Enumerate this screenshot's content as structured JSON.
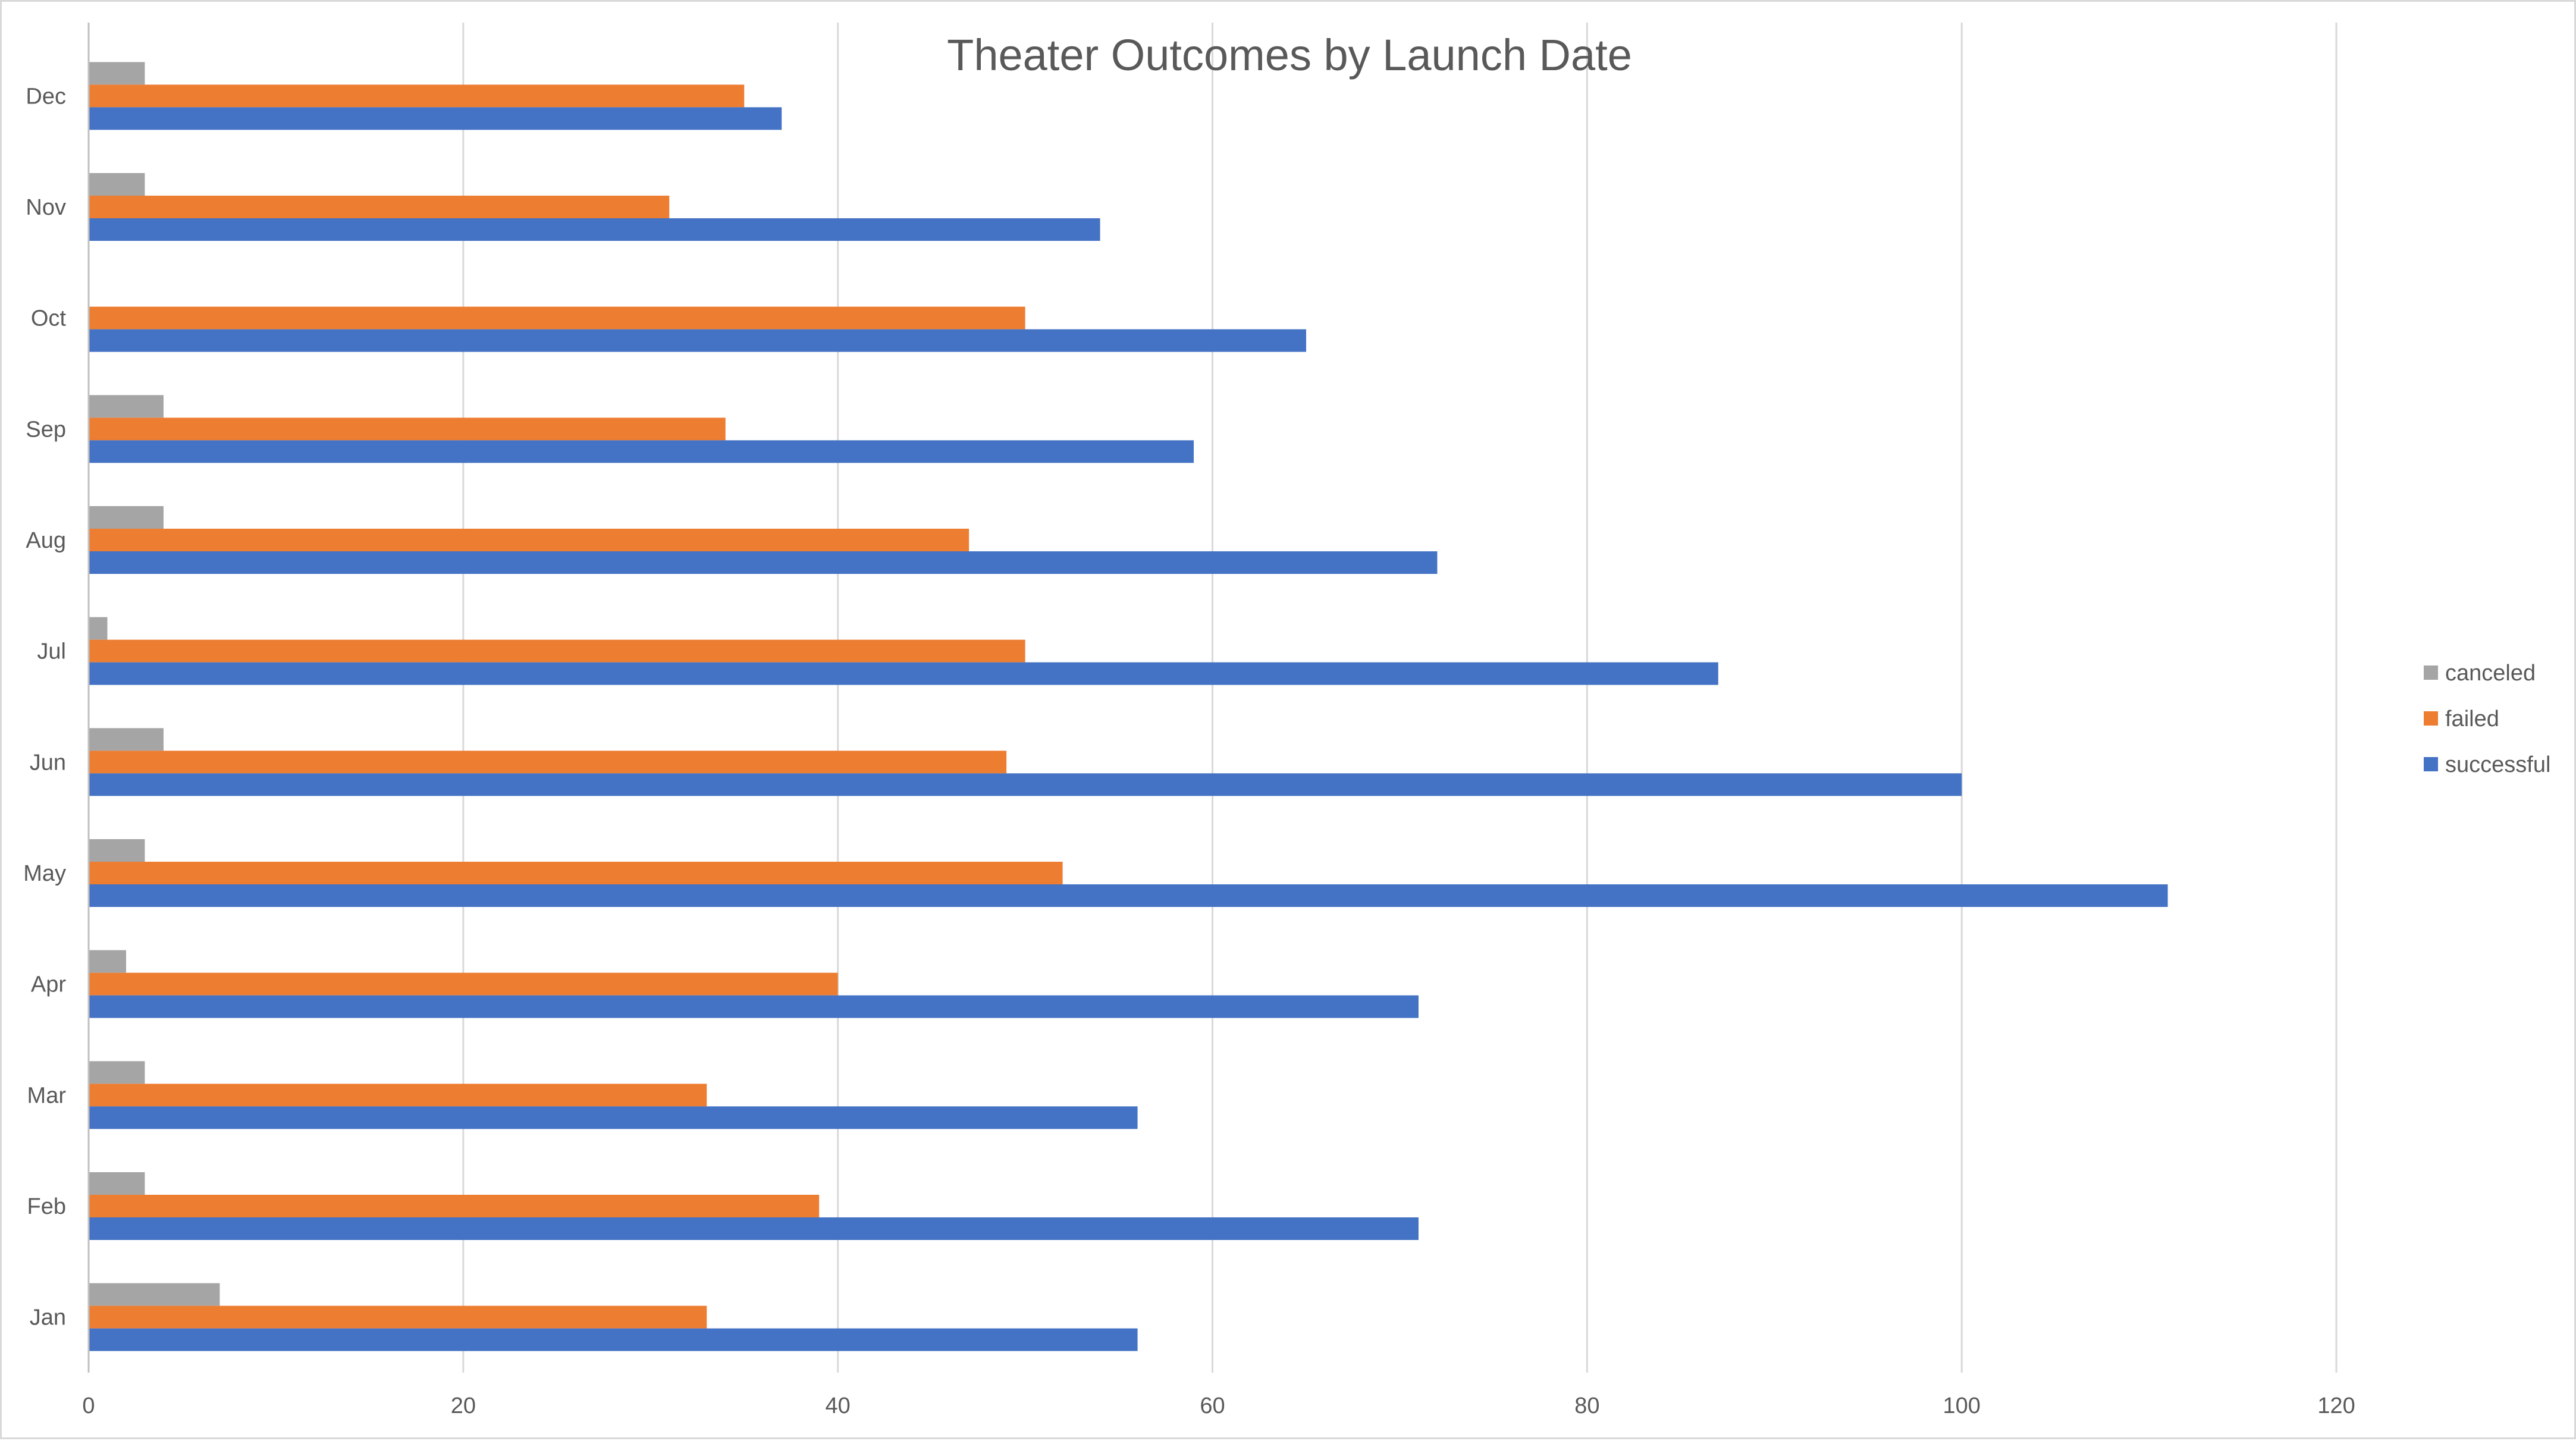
{
  "chart_data": {
    "type": "bar",
    "orientation": "horizontal",
    "title": "Theater Outcomes by Launch Date",
    "categories": [
      "Jan",
      "Feb",
      "Mar",
      "Apr",
      "May",
      "Jun",
      "Jul",
      "Aug",
      "Sep",
      "Oct",
      "Nov",
      "Dec"
    ],
    "series": [
      {
        "name": "successful",
        "color": "#4472c4",
        "values": [
          56,
          71,
          56,
          71,
          111,
          100,
          87,
          72,
          59,
          65,
          54,
          37
        ]
      },
      {
        "name": "failed",
        "color": "#ed7d31",
        "values": [
          33,
          39,
          33,
          40,
          52,
          49,
          50,
          47,
          34,
          50,
          31,
          35
        ]
      },
      {
        "name": "canceled",
        "color": "#a5a5a5",
        "values": [
          7,
          3,
          3,
          2,
          3,
          4,
          1,
          4,
          4,
          0,
          3,
          3
        ]
      }
    ],
    "xlim": [
      0,
      130
    ],
    "x_ticks": [
      0,
      20,
      40,
      60,
      80,
      100,
      120
    ],
    "grid": true,
    "legend": {
      "placement": "right",
      "order": [
        "canceled",
        "failed",
        "successful"
      ]
    }
  }
}
